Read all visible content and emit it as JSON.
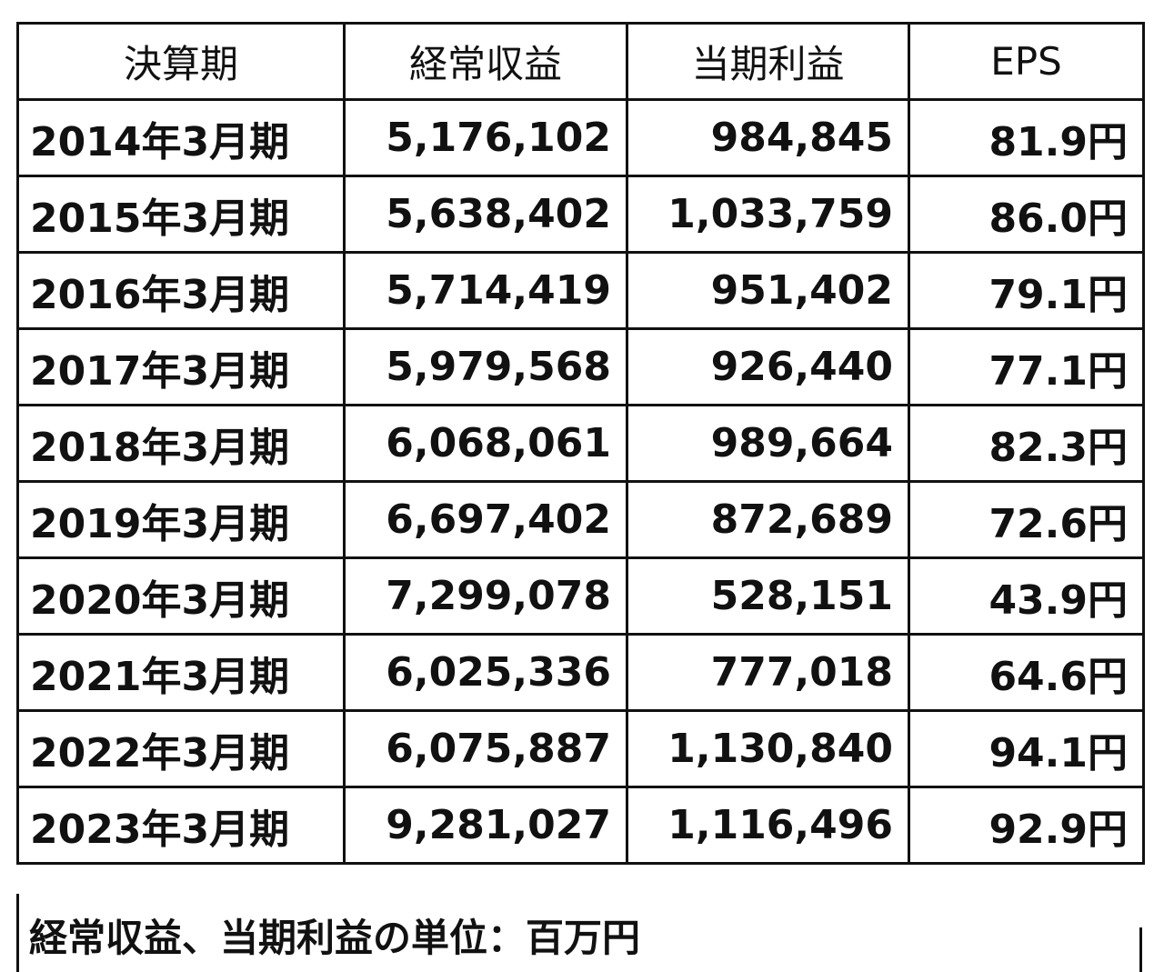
{
  "table": {
    "header": [
      "決算期",
      "経常収益",
      "当期利益",
      "EPS"
    ],
    "rows": [
      [
        "2014年3月期",
        "5,176,102",
        "984,845",
        "81.9円"
      ],
      [
        "2015年3月期",
        "5,638,402",
        "1,033,759",
        "86.0円"
      ],
      [
        "2016年3月期",
        "5,714,419",
        "951,402",
        "79.1円"
      ],
      [
        "2017年3月期",
        "5,979,568",
        "926,440",
        "77.1円"
      ],
      [
        "2018年3月期",
        "6,068,061",
        "989,664",
        "82.3円"
      ],
      [
        "2019年3月期",
        "6,697,402",
        "872,689",
        "72.6円"
      ],
      [
        "2020年3月期",
        "7,299,078",
        "528,151",
        "43.9円"
      ],
      [
        "2021年3月期",
        "6,025,336",
        "777,018",
        "64.6円"
      ],
      [
        "2022年3月期",
        "6,075,887",
        "1,130,840",
        "94.1円"
      ],
      [
        "2023年3月期",
        "9,281,027",
        "1,116,496",
        "92.9円"
      ]
    ]
  },
  "note": "経常収益、当期利益の単位：百万円"
}
